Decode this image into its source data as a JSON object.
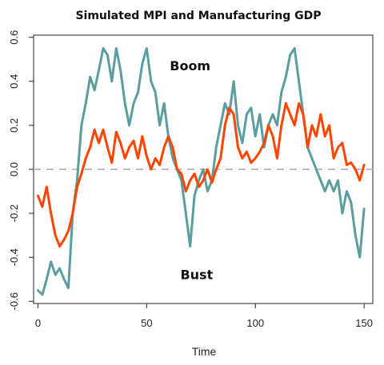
{
  "chart_data": {
    "type": "line",
    "title": "Simulated MPI and Manufacturing GDP",
    "xlabel": "Time",
    "ylabel": "",
    "xlim": [
      -2,
      154
    ],
    "ylim": [
      -0.61,
      0.61
    ],
    "x_ticks": [
      0,
      50,
      100,
      150
    ],
    "y_ticks": [
      -0.6,
      -0.4,
      -0.2,
      0.0,
      0.2,
      0.4,
      0.6
    ],
    "x_tick_labels": [
      "0",
      "50",
      "100",
      "150"
    ],
    "y_tick_labels": [
      "-0.6",
      "-0.4",
      "-0.2",
      "0.0",
      "0.2",
      "0.4",
      "0.6"
    ],
    "reference_line": {
      "y": 0.0,
      "style": "dashed",
      "color": "#bdbdbd"
    },
    "annotations": [
      {
        "text": "Boom",
        "x": 70,
        "y": 0.45
      },
      {
        "text": "Bust",
        "x": 73,
        "y": -0.5
      }
    ],
    "grid": false,
    "legend": "none",
    "series": [
      {
        "color": "#5a9e9e",
        "x": [
          0,
          2,
          4,
          6,
          8,
          10,
          12,
          14,
          16,
          18,
          20,
          22,
          24,
          26,
          28,
          30,
          32,
          34,
          36,
          38,
          40,
          42,
          44,
          46,
          48,
          50,
          52,
          54,
          56,
          58,
          60,
          62,
          64,
          66,
          68,
          70,
          72,
          74,
          76,
          78,
          80,
          82,
          84,
          86,
          88,
          90,
          92,
          94,
          96,
          98,
          100,
          102,
          104,
          106,
          108,
          110,
          112,
          114,
          116,
          118,
          120,
          122,
          124,
          126,
          128,
          130,
          132,
          134,
          136,
          138,
          140,
          142,
          144,
          146,
          148,
          150
        ],
        "values": [
          -0.55,
          -0.57,
          -0.5,
          -0.42,
          -0.48,
          -0.45,
          -0.5,
          -0.54,
          -0.2,
          -0.05,
          0.2,
          0.3,
          0.42,
          0.36,
          0.45,
          0.55,
          0.52,
          0.4,
          0.55,
          0.45,
          0.3,
          0.2,
          0.3,
          0.35,
          0.48,
          0.55,
          0.4,
          0.35,
          0.2,
          0.3,
          0.15,
          0.05,
          0.0,
          -0.05,
          -0.2,
          -0.35,
          -0.12,
          -0.05,
          0.0,
          -0.1,
          -0.05,
          0.1,
          0.2,
          0.3,
          0.25,
          0.4,
          0.2,
          0.12,
          0.25,
          0.28,
          0.15,
          0.25,
          0.1,
          0.2,
          0.25,
          0.2,
          0.35,
          0.42,
          0.52,
          0.55,
          0.4,
          0.25,
          0.1,
          0.05,
          0.0,
          -0.05,
          -0.1,
          -0.05,
          -0.1,
          -0.05,
          -0.2,
          -0.1,
          -0.15,
          -0.3,
          -0.4,
          -0.18
        ]
      },
      {
        "color": "#ff4500",
        "x": [
          0,
          2,
          4,
          6,
          8,
          10,
          12,
          14,
          16,
          18,
          20,
          22,
          24,
          26,
          28,
          30,
          32,
          34,
          36,
          38,
          40,
          42,
          44,
          46,
          48,
          50,
          52,
          54,
          56,
          58,
          60,
          62,
          64,
          66,
          68,
          70,
          72,
          74,
          76,
          78,
          80,
          82,
          84,
          86,
          88,
          90,
          92,
          94,
          96,
          98,
          100,
          102,
          104,
          106,
          108,
          110,
          112,
          114,
          116,
          118,
          120,
          122,
          124,
          126,
          128,
          130,
          132,
          134,
          136,
          138,
          140,
          142,
          144,
          146,
          148,
          150
        ],
        "values": [
          -0.12,
          -0.17,
          -0.08,
          -0.2,
          -0.3,
          -0.35,
          -0.32,
          -0.28,
          -0.2,
          -0.08,
          -0.02,
          0.05,
          0.1,
          0.18,
          0.12,
          0.18,
          0.1,
          0.03,
          0.17,
          0.12,
          0.05,
          0.1,
          0.13,
          0.05,
          0.15,
          0.06,
          0.0,
          0.05,
          0.02,
          0.1,
          0.15,
          0.1,
          0.0,
          -0.02,
          -0.1,
          -0.05,
          -0.02,
          -0.08,
          -0.05,
          0.0,
          -0.06,
          0.0,
          0.05,
          0.2,
          0.28,
          0.25,
          0.1,
          0.05,
          0.08,
          0.03,
          0.05,
          0.08,
          0.12,
          0.2,
          0.15,
          0.05,
          0.2,
          0.3,
          0.25,
          0.2,
          0.3,
          0.25,
          0.1,
          0.2,
          0.15,
          0.25,
          0.15,
          0.2,
          0.05,
          0.1,
          0.12,
          0.02,
          0.03,
          0.0,
          -0.05,
          0.02
        ]
      }
    ]
  }
}
